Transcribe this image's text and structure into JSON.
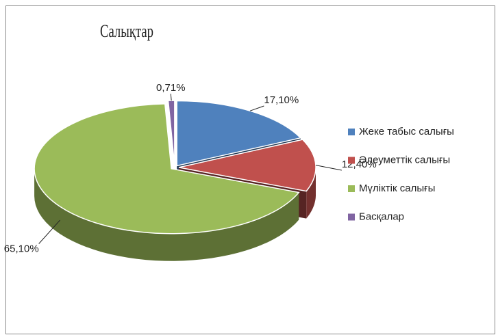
{
  "chart_data": {
    "type": "pie",
    "title": "Салықтар",
    "categories": [
      "Жеке табыс салығы",
      "Әлеуметтік салығы",
      "Мүліктік салығы",
      "Басқалар"
    ],
    "values": [
      17.1,
      12.4,
      65.1,
      0.71
    ],
    "value_labels": [
      "17,10%",
      "12,40%",
      "65,10%",
      "0,71%"
    ],
    "colors": [
      "#4f81bd",
      "#c0504d",
      "#9bbb59",
      "#8064a2"
    ],
    "legend": "right"
  }
}
